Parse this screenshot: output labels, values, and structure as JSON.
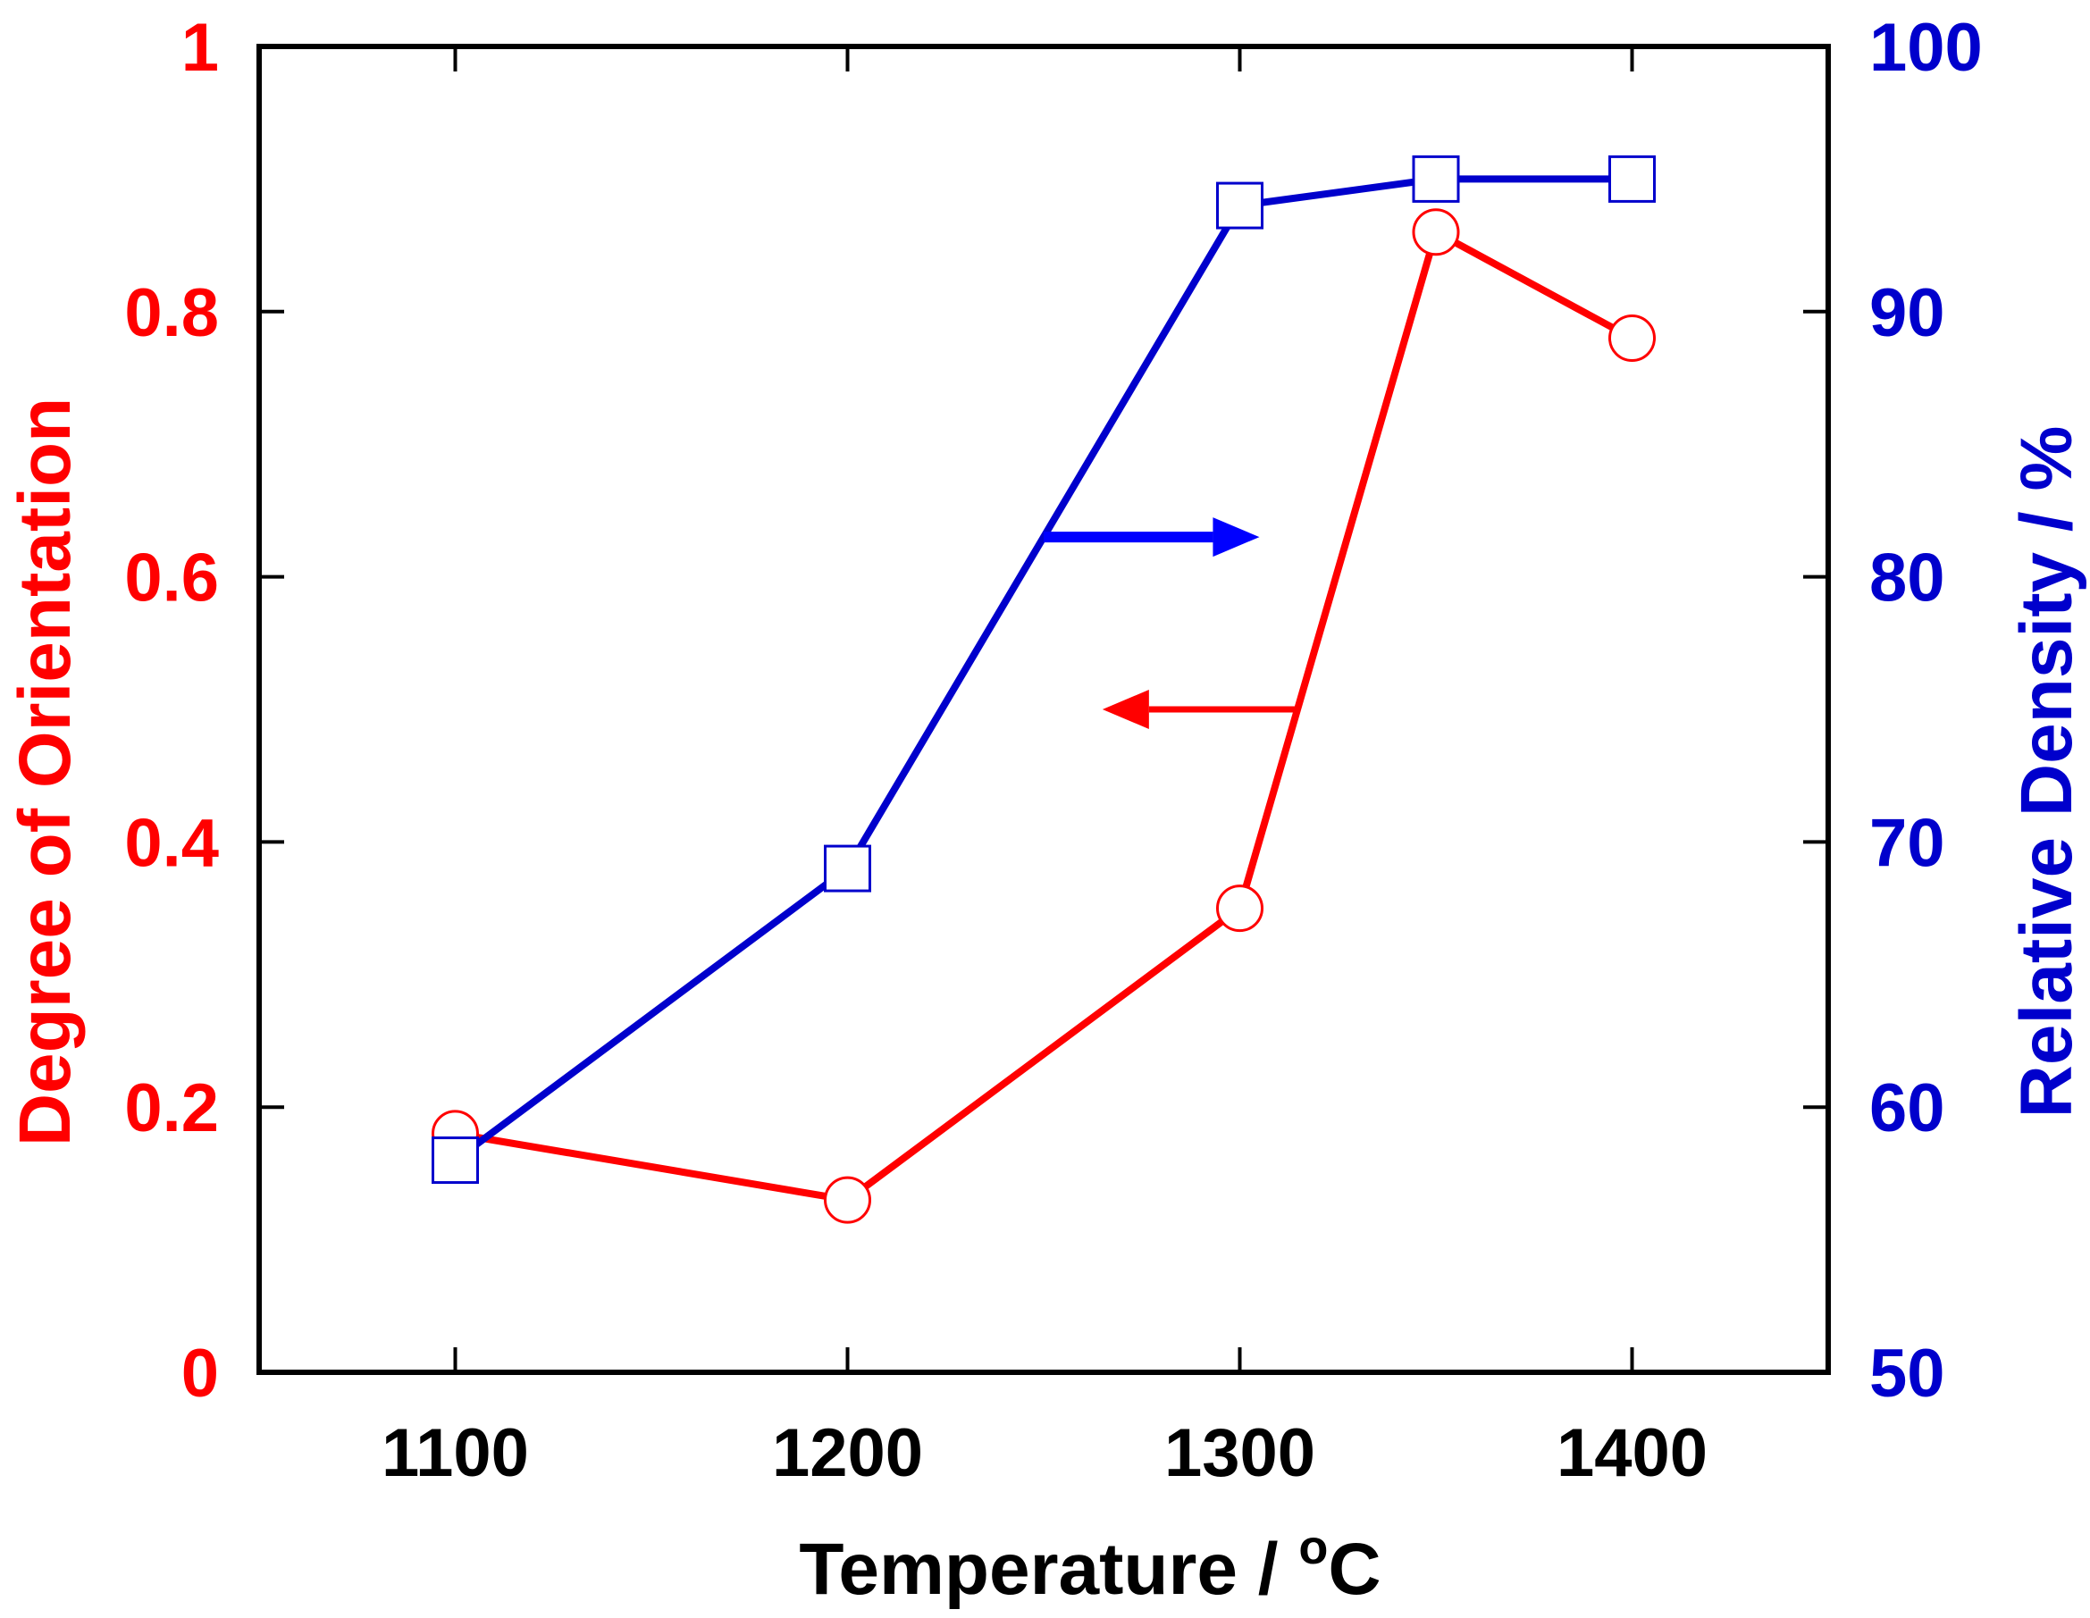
{
  "chart_data": {
    "type": "line",
    "x_axis": {
      "label_main": "Temperature / ",
      "label_sup": "o",
      "label_unit": "C",
      "range": [
        1050,
        1450
      ],
      "ticks": [
        1100,
        1200,
        1300,
        1400
      ],
      "tick_labels": [
        "1100",
        "1200",
        "1300",
        "1400"
      ]
    },
    "y_left": {
      "label": "Degree of Orientation",
      "range": [
        0,
        1
      ],
      "ticks": [
        0,
        0.2,
        0.4,
        0.6,
        0.8,
        1
      ],
      "tick_labels": [
        "0",
        "0.2",
        "0.4",
        "0.6",
        "0.8",
        "1"
      ],
      "color": "#ff0000"
    },
    "y_right": {
      "label": "Relative Density / %",
      "range": [
        50,
        100
      ],
      "ticks": [
        50,
        60,
        70,
        80,
        90,
        100
      ],
      "tick_labels": [
        "50",
        "60",
        "70",
        "80",
        "90",
        "100"
      ],
      "color": "#0000cc"
    },
    "series": [
      {
        "axis": "left",
        "marker": "circle",
        "color": "#ff0000",
        "x": [
          1100,
          1200,
          1300,
          1350,
          1400
        ],
        "y": [
          0.18,
          0.13,
          0.35,
          0.86,
          0.78
        ]
      },
      {
        "axis": "right",
        "marker": "square",
        "color": "#0000cc",
        "x": [
          1100,
          1200,
          1300,
          1350,
          1400
        ],
        "y": [
          58,
          69,
          94,
          95,
          95
        ]
      }
    ],
    "annotations": [
      {
        "kind": "arrow",
        "series_axis": "left",
        "direction": "left",
        "color": "#ff0000",
        "from": [
          1315,
          0.5
        ],
        "to": [
          1265,
          0.5
        ]
      },
      {
        "kind": "arrow",
        "series_axis": "right",
        "direction": "right",
        "color": "#0000ff",
        "from": [
          1250,
          81.5
        ],
        "to": [
          1305,
          81.5
        ]
      }
    ],
    "grid": false,
    "legend": "none"
  }
}
